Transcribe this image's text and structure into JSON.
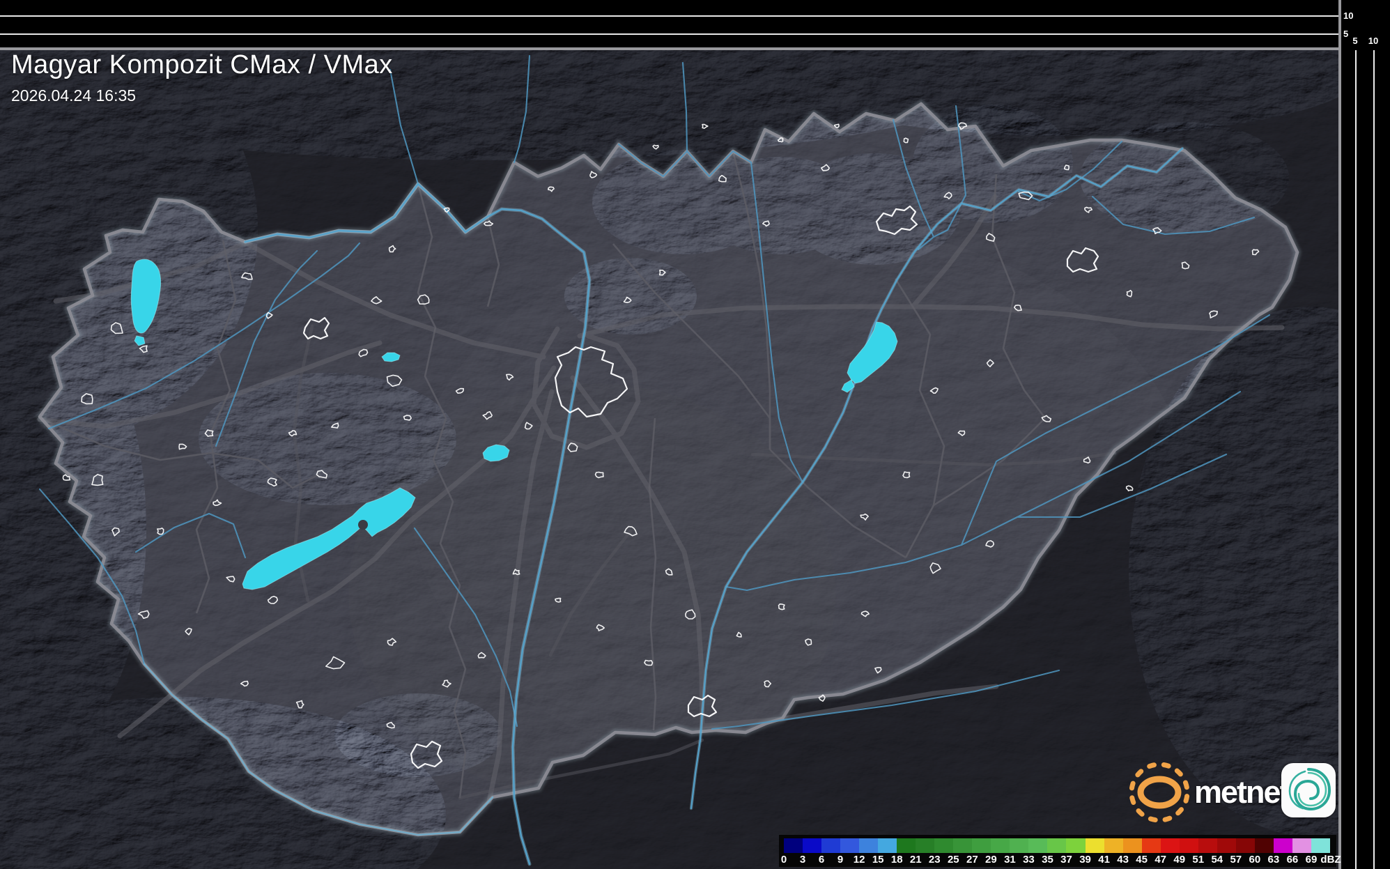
{
  "header": {
    "title": "Magyar Kompozit CMax / VMax",
    "timestamp": "2026.04.24 16:35"
  },
  "profile_graph": {
    "y_axis_labels": [
      "10",
      "5"
    ],
    "x_axis_labels": [
      "5",
      "10"
    ]
  },
  "legend": {
    "unit": "dBZ",
    "ticks": [
      "0",
      "3",
      "6",
      "9",
      "12",
      "15",
      "18",
      "21",
      "23",
      "25",
      "27",
      "29",
      "31",
      "33",
      "35",
      "37",
      "39",
      "41",
      "43",
      "45",
      "47",
      "49",
      "51",
      "54",
      "57",
      "60",
      "63",
      "66",
      "69"
    ],
    "colors": [
      "#00007e",
      "#0a0ac8",
      "#1f3bd4",
      "#3358dd",
      "#3d82dd",
      "#44a8e0",
      "#1e781e",
      "#277f27",
      "#2f8a2f",
      "#389438",
      "#3f9e3f",
      "#47a847",
      "#50b150",
      "#58bb58",
      "#68c648",
      "#7dd23c",
      "#ecdf2e",
      "#eeb226",
      "#ec921e",
      "#e63914",
      "#dc1414",
      "#d01010",
      "#b80d0d",
      "#a00909",
      "#860606",
      "#500202",
      "#cc00cc",
      "#e391e3",
      "#7fe3da"
    ]
  },
  "branding": {
    "logo_text": "metnet"
  },
  "map": {
    "palette": {
      "lake": "#38d5e9",
      "river": "#4f96bf",
      "country_border": "#8b8b93",
      "road": "#5e5e66",
      "town_outline": "#ffffff",
      "land_inside": "#3b3b43",
      "land_outside": "#26262b"
    }
  }
}
